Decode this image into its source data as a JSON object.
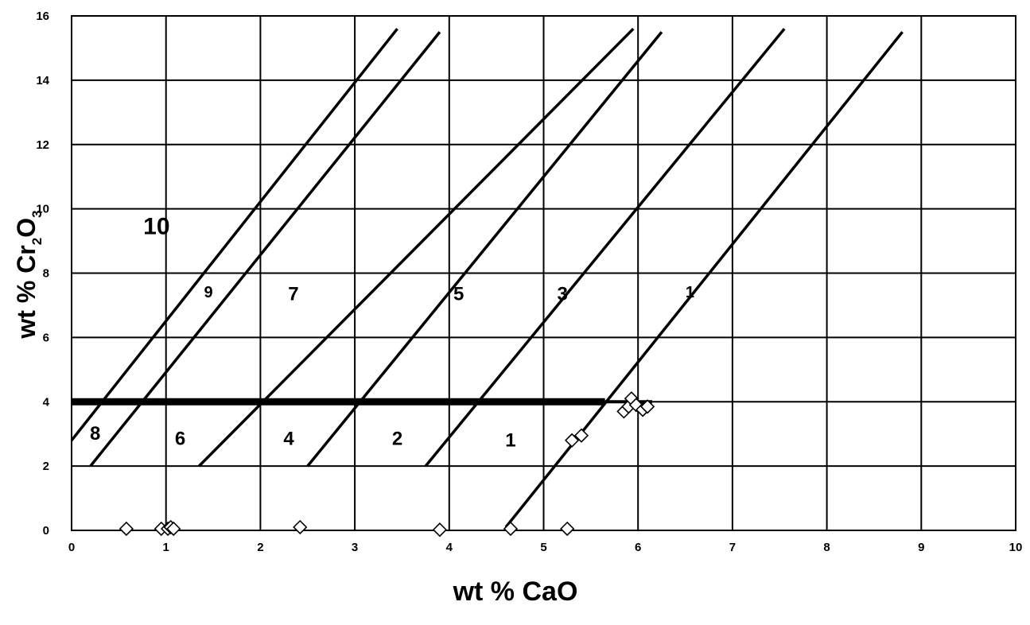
{
  "chart_data": {
    "type": "scatter",
    "title": "",
    "xlabel": "wt % CaO",
    "ylabel_main": "wt % Cr",
    "ylabel_sub1": "2",
    "ylabel_O": "O",
    "ylabel_sub2": "3",
    "xlim": [
      0,
      10
    ],
    "ylim": [
      0,
      16
    ],
    "x_ticks": [
      "0",
      "1",
      "2",
      "3",
      "4",
      "5",
      "6",
      "7",
      "8",
      "9",
      "10"
    ],
    "y_ticks": [
      "0",
      "2",
      "4",
      "6",
      "8",
      "10",
      "12",
      "14",
      "16"
    ],
    "grid": true,
    "boundary_lines": [
      {
        "x": [
          0.0,
          3.45
        ],
        "y": [
          2.8,
          15.6
        ]
      },
      {
        "x": [
          0.2,
          3.9
        ],
        "y": [
          2.0,
          15.5
        ]
      },
      {
        "x": [
          1.35,
          5.95
        ],
        "y": [
          2.0,
          15.6
        ]
      },
      {
        "x": [
          2.5,
          6.25
        ],
        "y": [
          2.0,
          15.5
        ]
      },
      {
        "x": [
          3.75,
          7.55
        ],
        "y": [
          2.0,
          15.6
        ]
      },
      {
        "x": [
          4.6,
          8.8
        ],
        "y": [
          0.1,
          15.5
        ]
      }
    ],
    "divider": {
      "y": 4.0,
      "x": [
        0.0,
        5.65
      ]
    },
    "divider_thin": {
      "y": 4.0,
      "x": [
        5.65,
        6.15
      ]
    },
    "region_labels": [
      {
        "text": "10",
        "x": 0.9,
        "y": 9.45
      },
      {
        "text": "9",
        "x": 1.45,
        "y": 7.4
      },
      {
        "text": "7",
        "x": 2.35,
        "y": 7.35
      },
      {
        "text": "5",
        "x": 4.1,
        "y": 7.35
      },
      {
        "text": "3",
        "x": 5.2,
        "y": 7.35
      },
      {
        "text": "1",
        "x": 6.55,
        "y": 7.4
      },
      {
        "text": "8",
        "x": 0.25,
        "y": 3.0
      },
      {
        "text": "6",
        "x": 1.15,
        "y": 2.85
      },
      {
        "text": "4",
        "x": 2.3,
        "y": 2.85
      },
      {
        "text": "2",
        "x": 3.45,
        "y": 2.85
      },
      {
        "text": "1",
        "x": 4.65,
        "y": 2.8
      }
    ],
    "points": [
      {
        "x": 0.58,
        "y": 0.05
      },
      {
        "x": 0.95,
        "y": 0.05
      },
      {
        "x": 1.02,
        "y": 0.05
      },
      {
        "x": 1.05,
        "y": 0.1
      },
      {
        "x": 1.08,
        "y": 0.05
      },
      {
        "x": 2.42,
        "y": 0.1
      },
      {
        "x": 3.9,
        "y": 0.02
      },
      {
        "x": 4.65,
        "y": 0.05
      },
      {
        "x": 5.25,
        "y": 0.05
      },
      {
        "x": 5.3,
        "y": 2.8
      },
      {
        "x": 5.4,
        "y": 2.95
      },
      {
        "x": 5.85,
        "y": 3.7
      },
      {
        "x": 5.9,
        "y": 3.85
      },
      {
        "x": 5.93,
        "y": 4.1
      },
      {
        "x": 5.98,
        "y": 3.9
      },
      {
        "x": 6.05,
        "y": 3.75
      },
      {
        "x": 6.1,
        "y": 3.85
      }
    ]
  }
}
